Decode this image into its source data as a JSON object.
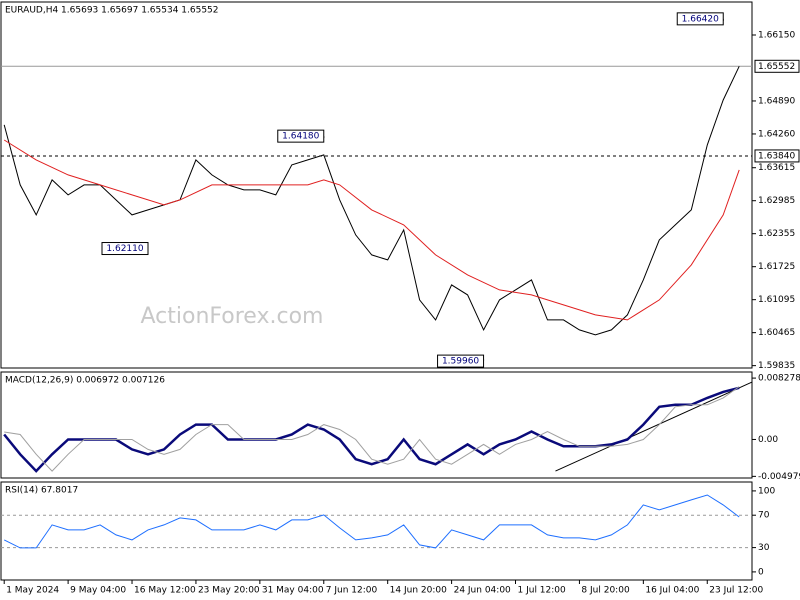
{
  "chart_data": [
    {
      "type": "line",
      "title": "EURAUD,H4 1.65693 1.65697 1.65534 1.65552",
      "watermark": "ActionForex.com",
      "x": [
        0,
        1,
        2,
        3,
        4,
        5,
        6,
        7,
        8,
        9,
        10,
        11,
        12,
        13,
        14,
        15,
        16,
        17,
        18,
        19,
        20,
        21,
        22,
        23,
        24,
        25,
        26,
        27,
        28,
        29,
        30,
        31,
        32,
        33,
        34,
        35,
        36,
        37,
        38,
        39,
        40,
        41,
        42,
        43,
        44,
        45,
        46
      ],
      "xlim": [
        -0.2,
        46.8
      ],
      "series": [
        {
          "name": "EURAUD",
          "color": "#000000",
          "values": [
            1.64432,
            1.63286,
            1.62714,
            1.63382,
            1.63095,
            1.63286,
            1.63286,
            1.63,
            1.62714,
            1.62809,
            1.62905,
            1.63,
            1.63764,
            1.63477,
            1.63286,
            1.63191,
            1.63191,
            1.63095,
            1.63668,
            1.63764,
            1.63859,
            1.63,
            1.62332,
            1.6195,
            1.61854,
            1.62427,
            1.61091,
            1.60709,
            1.61377,
            1.61186,
            1.60518,
            1.61091,
            1.61282,
            1.61473,
            1.60709,
            1.60709,
            1.60518,
            1.60423,
            1.60518,
            1.60804,
            1.61473,
            1.62236,
            1.62523,
            1.62809,
            1.6405,
            1.64909,
            1.65552
          ]
        },
        {
          "name": "MA",
          "color": "#e02020",
          "x": [
            0,
            2,
            4,
            6,
            8,
            10,
            11,
            13,
            16,
            19,
            20,
            21,
            23,
            25,
            27,
            29,
            31,
            33,
            35,
            37,
            39,
            41,
            43,
            45,
            46
          ],
          "values": [
            1.64145,
            1.63764,
            1.63477,
            1.63286,
            1.63095,
            1.62905,
            1.63,
            1.63286,
            1.63286,
            1.63286,
            1.63382,
            1.63286,
            1.62809,
            1.62523,
            1.6195,
            1.61568,
            1.61282,
            1.61186,
            1.60995,
            1.60804,
            1.60709,
            1.61091,
            1.61759,
            1.62714,
            1.63573
          ]
        }
      ],
      "ylim": [
        1.5979,
        1.6678
      ],
      "yticks": [
        {
          "value": 1.6615,
          "label": "1.66150"
        },
        {
          "value": 1.6489,
          "label": "1.64890"
        },
        {
          "value": 1.6426,
          "label": "1.64260"
        },
        1.63615,
        1.62985,
        1.62355,
        1.61725,
        1.61095,
        1.60465,
        1.59835
      ],
      "price_lines": [
        {
          "value": 1.65552
        },
        {
          "value": 1.6384,
          "label": "1.63840",
          "dashed": true
        }
      ],
      "annotations": [
        {
          "label": "1.66420",
          "value": 1.6642,
          "x": 45
        },
        {
          "label": "1.64180",
          "value": 1.6418,
          "x": 20
        },
        {
          "label": "1.62110",
          "value": 1.6211,
          "x": 9
        },
        {
          "label": "1.59960",
          "value": 1.5996,
          "x": 30
        }
      ]
    },
    {
      "type": "line",
      "title": "MACD(12,26,9) 0.006972 0.007126",
      "x": [
        0,
        1,
        2,
        3,
        4,
        5,
        6,
        7,
        8,
        9,
        10,
        11,
        12,
        13,
        14,
        15,
        16,
        17,
        18,
        19,
        20,
        21,
        22,
        23,
        24,
        25,
        26,
        27,
        28,
        29,
        30,
        31,
        32,
        33,
        34,
        35,
        36,
        37,
        38,
        39,
        40,
        41,
        42,
        43,
        44,
        45,
        46
      ],
      "xlim": [
        -0.2,
        46.8
      ],
      "series": [
        {
          "name": "MACD",
          "color": "#0a0a7a",
          "width": 2.5,
          "values": [
            0.00067,
            -0.002,
            -0.00427,
            -0.002,
            0,
            0,
            0,
            0,
            -0.00134,
            -0.002,
            -0.00134,
            0.00067,
            0.002,
            0.002,
            0,
            0,
            0,
            0,
            0.00067,
            0.002,
            0.00134,
            0,
            -0.00267,
            -0.00334,
            -0.00267,
            0,
            -0.00267,
            -0.00334,
            -0.002,
            -0.00067,
            -0.002,
            -0.00067,
            0,
            0.00107,
            0,
            -0.00093,
            -0.00093,
            -0.00093,
            -0.00067,
            0,
            0.002,
            0.00441,
            0.00467,
            0.00467,
            0.00561,
            0.00641,
            0.006972
          ]
        },
        {
          "name": "Signal",
          "color": "#a0a0a0",
          "width": 1,
          "values": [
            0.001,
            0.00067,
            -0.002,
            -0.00427,
            -0.002,
            0,
            0,
            0,
            0,
            -0.00134,
            -0.002,
            -0.00134,
            0.00067,
            0.002,
            0.002,
            0,
            0,
            0,
            0,
            0.00067,
            0.002,
            0.00134,
            0,
            -0.00267,
            -0.00334,
            -0.00267,
            0,
            -0.00267,
            -0.00334,
            -0.002,
            -0.00067,
            -0.002,
            -0.00067,
            0,
            0.00107,
            0,
            -0.00093,
            -0.00093,
            -0.00093,
            -0.00067,
            0,
            0.002,
            0.00441,
            0.00467,
            0.00467,
            0.00561,
            0.007126
          ]
        }
      ],
      "ylim": [
        -0.0052,
        0.0091
      ],
      "yticks": [
        0.008278,
        {
          "value": 0,
          "label": "0.00"
        },
        -0.004979
      ],
      "trendline": {
        "x": [
          34.5,
          46.8
        ],
        "values": [
          -0.00427,
          0.00774
        ]
      }
    },
    {
      "type": "line",
      "title": "RSI(14) 67.8017",
      "x": [
        0,
        1,
        2,
        3,
        4,
        5,
        6,
        7,
        8,
        9,
        10,
        11,
        12,
        13,
        14,
        15,
        16,
        17,
        18,
        19,
        20,
        21,
        22,
        23,
        24,
        25,
        26,
        27,
        28,
        29,
        30,
        31,
        32,
        33,
        34,
        35,
        36,
        37,
        38,
        39,
        40,
        41,
        42,
        43,
        44,
        45,
        46
      ],
      "xlim": [
        -0.2,
        46.8
      ],
      "series": [
        {
          "name": "RSI",
          "color": "#1e6fff",
          "values": [
            39.5,
            29.6,
            29.6,
            58,
            51.9,
            51.9,
            58,
            45.7,
            39.5,
            51.9,
            58,
            66.7,
            64.2,
            51.9,
            51.9,
            51.9,
            58,
            51.9,
            64.2,
            64.2,
            70.4,
            54.3,
            39.5,
            42,
            45.7,
            58,
            33.3,
            29.6,
            51.9,
            45.7,
            39.5,
            58,
            58,
            58,
            45.7,
            42,
            42,
            39.5,
            45.7,
            58,
            82.7,
            76.5,
            82.7,
            88.9,
            95,
            82.7,
            67.8017
          ]
        }
      ],
      "ylim": [
        -10,
        111
      ],
      "yticks": [
        100,
        70,
        30,
        0
      ],
      "levels": [
        70,
        30
      ],
      "xticks": [
        {
          "value": 0,
          "label": "1 May 2024"
        },
        {
          "value": 4,
          "label": "9 May 04:00"
        },
        {
          "value": 8,
          "label": "16 May 12:00"
        },
        {
          "value": 12,
          "label": "23 May 20:00"
        },
        {
          "value": 16,
          "label": "31 May 04:00"
        },
        {
          "value": 20,
          "label": "7 Jun 12:00"
        },
        {
          "value": 24,
          "label": "14 Jun 20:00"
        },
        {
          "value": 28,
          "label": "24 Jun 04:00"
        },
        {
          "value": 32,
          "label": "1 Jul 12:00"
        },
        {
          "value": 36,
          "label": "8 Jul 20:00"
        },
        {
          "value": 40,
          "label": "16 Jul 04:00"
        },
        {
          "value": 44,
          "label": "23 Jul 12:00"
        }
      ]
    }
  ]
}
